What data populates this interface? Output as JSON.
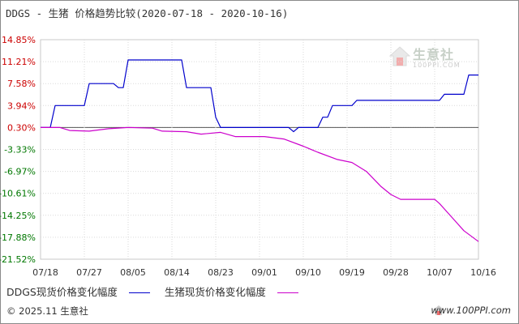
{
  "header": {
    "title": "DDGS - 生猪 价格趋势比较(2020-07-18 - 2020-10-16)"
  },
  "watermark": {
    "icon": "house-logo-icon",
    "text": "生意社",
    "sub": "100PPI.COM"
  },
  "legend": {
    "items": [
      {
        "label": "DDGS现货价格变化幅度",
        "color": "#0000cc"
      },
      {
        "label": "生猪现货价格变化幅度",
        "color": "#cc00cc"
      }
    ]
  },
  "footer": {
    "left": "© 2025.11 生意社",
    "right": "www.100PPI.com"
  },
  "chart_data": {
    "type": "line",
    "title": "DDGS - 生猪 价格趋势比较(2020-07-18 - 2020-10-16)",
    "x_start": "2020-07-18",
    "x_end": "2020-10-16",
    "xticks": [
      "07/18",
      "07/27",
      "08/05",
      "08/14",
      "08/23",
      "09/01",
      "09/10",
      "09/19",
      "09/28",
      "10/07",
      "10/16"
    ],
    "yticks": [
      "14.85%",
      "11.21%",
      "7.58%",
      "3.94%",
      "0.30%",
      "-3.33%",
      "-6.97%",
      "-10.61%",
      "-14.25%",
      "-17.88%",
      "-21.52%"
    ],
    "ylim": [
      -21.52,
      14.85
    ],
    "grid": true,
    "zero_line": 0.3,
    "legend_position": "bottom",
    "series": [
      {
        "name": "DDGS现货价格变化幅度",
        "color": "#0000cc",
        "points": [
          [
            "2020-07-18",
            0.3
          ],
          [
            "2020-07-20",
            0.3
          ],
          [
            "2020-07-21",
            3.94
          ],
          [
            "2020-07-27",
            3.94
          ],
          [
            "2020-07-28",
            7.58
          ],
          [
            "2020-08-02",
            7.58
          ],
          [
            "2020-08-03",
            6.9
          ],
          [
            "2020-08-04",
            6.9
          ],
          [
            "2020-08-05",
            11.5
          ],
          [
            "2020-08-16",
            11.5
          ],
          [
            "2020-08-17",
            6.9
          ],
          [
            "2020-08-22",
            6.9
          ],
          [
            "2020-08-23",
            2.0
          ],
          [
            "2020-08-24",
            0.3
          ],
          [
            "2020-09-07",
            0.3
          ],
          [
            "2020-09-08",
            -0.4
          ],
          [
            "2020-09-09",
            0.3
          ],
          [
            "2020-09-13",
            0.3
          ],
          [
            "2020-09-14",
            2.0
          ],
          [
            "2020-09-15",
            2.0
          ],
          [
            "2020-09-16",
            3.94
          ],
          [
            "2020-09-20",
            3.94
          ],
          [
            "2020-09-21",
            4.8
          ],
          [
            "2020-10-08",
            4.8
          ],
          [
            "2020-10-09",
            5.8
          ],
          [
            "2020-10-13",
            5.8
          ],
          [
            "2020-10-14",
            9.0
          ],
          [
            "2020-10-16",
            9.0
          ]
        ]
      },
      {
        "name": "生猪现货价格变化幅度",
        "color": "#cc00cc",
        "points": [
          [
            "2020-07-18",
            0.3
          ],
          [
            "2020-07-22",
            0.3
          ],
          [
            "2020-07-24",
            -0.2
          ],
          [
            "2020-07-28",
            -0.3
          ],
          [
            "2020-08-01",
            0.1
          ],
          [
            "2020-08-05",
            0.3
          ],
          [
            "2020-08-10",
            0.2
          ],
          [
            "2020-08-12",
            -0.3
          ],
          [
            "2020-08-17",
            -0.4
          ],
          [
            "2020-08-20",
            -0.8
          ],
          [
            "2020-08-24",
            -0.5
          ],
          [
            "2020-08-27",
            -1.2
          ],
          [
            "2020-09-02",
            -1.2
          ],
          [
            "2020-09-06",
            -1.6
          ],
          [
            "2020-09-10",
            -2.8
          ],
          [
            "2020-09-13",
            -3.8
          ],
          [
            "2020-09-17",
            -5.0
          ],
          [
            "2020-09-20",
            -5.5
          ],
          [
            "2020-09-23",
            -7.0
          ],
          [
            "2020-09-26",
            -9.5
          ],
          [
            "2020-09-28",
            -10.8
          ],
          [
            "2020-09-30",
            -11.6
          ],
          [
            "2020-10-07",
            -11.6
          ],
          [
            "2020-10-08",
            -12.3
          ],
          [
            "2020-10-11",
            -15.0
          ],
          [
            "2020-10-13",
            -16.8
          ],
          [
            "2020-10-16",
            -18.6
          ]
        ]
      }
    ]
  }
}
